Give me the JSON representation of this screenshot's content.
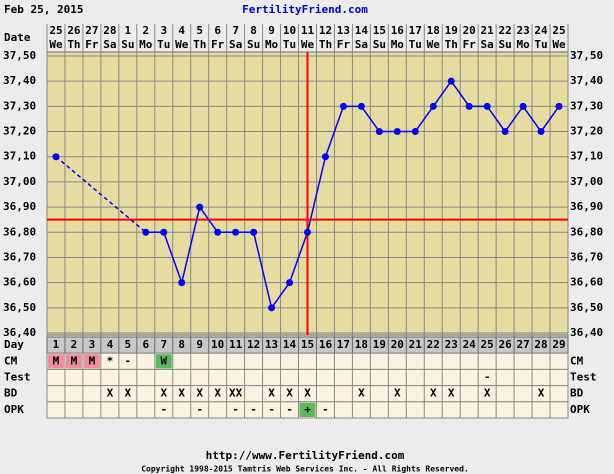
{
  "header_date": "Feb 25, 2015",
  "chart_data": {
    "type": "line",
    "title": "FertilityFriend.com",
    "date_label": "Date",
    "dates": [
      25,
      26,
      27,
      28,
      1,
      2,
      3,
      4,
      5,
      6,
      7,
      8,
      9,
      10,
      11,
      12,
      13,
      14,
      15,
      16,
      17,
      18,
      19,
      20,
      21,
      22,
      23,
      24,
      25
    ],
    "weekdays": [
      "We",
      "Th",
      "Fr",
      "Sa",
      "Su",
      "Mo",
      "Tu",
      "We",
      "Th",
      "Fr",
      "Sa",
      "Su",
      "Mo",
      "Tu",
      "We",
      "Th",
      "Fr",
      "Sa",
      "Su",
      "Mo",
      "Tu",
      "We",
      "Th",
      "Fr",
      "Sa",
      "Su",
      "Mo",
      "Tu",
      "We"
    ],
    "day_label": "Day",
    "categories": [
      1,
      2,
      3,
      4,
      5,
      6,
      7,
      8,
      9,
      10,
      11,
      12,
      13,
      14,
      15,
      16,
      17,
      18,
      19,
      20,
      21,
      22,
      23,
      24,
      25,
      26,
      27,
      28,
      29
    ],
    "series": [
      {
        "color": "#0000ff",
        "values": [
          37.1,
          null,
          null,
          null,
          null,
          36.8,
          36.8,
          36.6,
          36.9,
          36.8,
          36.8,
          36.8,
          36.5,
          36.6,
          36.8,
          37.1,
          37.3,
          37.3,
          37.2,
          37.2,
          37.2,
          37.3,
          37.4,
          37.3,
          37.3,
          37.2,
          37.3,
          37.2,
          37.3
        ]
      }
    ],
    "gap_line": "dashed",
    "ylim": [
      36.4,
      37.5
    ],
    "yticks": [
      {
        "value": 36.4,
        "label": "36,40"
      },
      {
        "value": 36.5,
        "label": "36,50"
      },
      {
        "value": 36.6,
        "label": "36,60"
      },
      {
        "value": 36.7,
        "label": "36,70"
      },
      {
        "value": 36.8,
        "label": "36,80"
      },
      {
        "value": 36.9,
        "label": "36,90"
      },
      {
        "value": 37.0,
        "label": "37,00"
      },
      {
        "value": 37.1,
        "label": "37,10"
      },
      {
        "value": 37.2,
        "label": "37,20"
      },
      {
        "value": 37.3,
        "label": "37,30"
      },
      {
        "value": 37.4,
        "label": "37,40"
      },
      {
        "value": 37.5,
        "label": "37,50"
      }
    ],
    "grid": true,
    "coverline": 36.85,
    "coverline_color": "#ff0000",
    "ovulation_day": 15,
    "rows": [
      {
        "label": "CM",
        "values": [
          "M",
          "M",
          "M",
          "*",
          "-",
          null,
          "W",
          null,
          null,
          null,
          null,
          null,
          null,
          null,
          null,
          null,
          null,
          null,
          null,
          null,
          null,
          null,
          null,
          null,
          null,
          null,
          null,
          null,
          null
        ]
      },
      {
        "label": "Test",
        "values": [
          null,
          null,
          null,
          null,
          null,
          null,
          null,
          null,
          null,
          null,
          null,
          null,
          null,
          null,
          null,
          null,
          null,
          null,
          null,
          null,
          null,
          null,
          null,
          null,
          "-",
          null,
          null,
          null,
          null
        ]
      },
      {
        "label": "BD",
        "values": [
          null,
          null,
          null,
          "X",
          "X",
          null,
          "X",
          "X",
          "X",
          "X",
          "XX",
          null,
          "X",
          "X",
          "X",
          null,
          null,
          "X",
          null,
          "X",
          null,
          "X",
          "X",
          null,
          "X",
          null,
          null,
          "X",
          null
        ]
      },
      {
        "label": "OPK",
        "values": [
          null,
          null,
          null,
          null,
          null,
          null,
          "-",
          null,
          "-",
          null,
          "-",
          "-",
          "-",
          "-",
          "+",
          "-",
          null,
          null,
          null,
          null,
          null,
          null,
          null,
          null,
          null,
          null,
          null,
          null,
          null
        ]
      }
    ],
    "cell_colors": {
      "M": "#f08ca0",
      "W": "#5cb85c",
      "+": "#5cb85c"
    }
  },
  "footer": {
    "url": "http://www.FertilityFriend.com",
    "copyright": "Copyright 1998-2015 Tamtris Web Services Inc. - All Rights Reserved."
  }
}
